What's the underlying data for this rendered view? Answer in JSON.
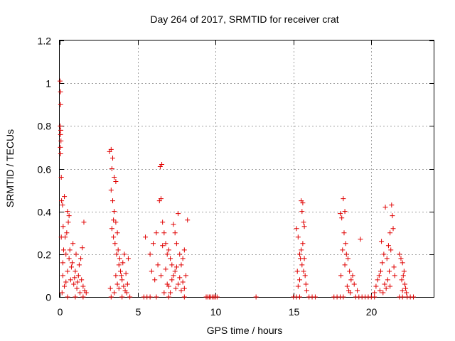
{
  "chart_data": {
    "type": "scatter",
    "title": "Day 264 of 2017, SRMTID for receiver crat",
    "xlabel": "GPS time / hours",
    "ylabel": "SRMTID / TECUs",
    "xlim": [
      0,
      24
    ],
    "ylim": [
      0,
      1.2
    ],
    "xticks": [
      0,
      5,
      10,
      15,
      20
    ],
    "xtick_labels": [
      "0",
      "5",
      "10",
      "15",
      "20"
    ],
    "yticks": [
      0,
      0.2,
      0.4,
      0.6,
      0.8,
      1.0,
      1.2
    ],
    "ytick_labels": [
      "0",
      "0.2",
      "0.4",
      "0.6",
      "0.8",
      "1",
      "1.2"
    ],
    "grid": true,
    "marker": "+",
    "color": "#e00000",
    "series": [
      {
        "name": "SRMTID",
        "points": [
          [
            0.02,
            1.01
          ],
          [
            0.05,
            0.96
          ],
          [
            0.06,
            0.9
          ],
          [
            0.03,
            0.8
          ],
          [
            0.07,
            0.78
          ],
          [
            0.05,
            0.76
          ],
          [
            0.08,
            0.73
          ],
          [
            0.04,
            0.7
          ],
          [
            0.06,
            0.67
          ],
          [
            0.1,
            0.56
          ],
          [
            0.12,
            0.45
          ],
          [
            0.18,
            0.43
          ],
          [
            0.3,
            0.47
          ],
          [
            0.5,
            0.4
          ],
          [
            0.6,
            0.38
          ],
          [
            0.55,
            0.35
          ],
          [
            0.45,
            0.3
          ],
          [
            0.35,
            0.28
          ],
          [
            0.25,
            0.22
          ],
          [
            0.4,
            0.2
          ],
          [
            0.6,
            0.18
          ],
          [
            0.8,
            0.16
          ],
          [
            1.0,
            0.12
          ],
          [
            1.2,
            0.1
          ],
          [
            1.4,
            0.08
          ],
          [
            1.5,
            0.05
          ],
          [
            1.6,
            0.03
          ],
          [
            1.7,
            0.02
          ],
          [
            0.2,
            0.1
          ],
          [
            0.3,
            0.05
          ],
          [
            0.7,
            0.08
          ],
          [
            0.9,
            0.06
          ],
          [
            1.1,
            0.04
          ],
          [
            1.3,
            0.02
          ],
          [
            0.15,
            0.02
          ],
          [
            0.5,
            0.12
          ],
          [
            0.65,
            0.22
          ],
          [
            0.85,
            0.25
          ],
          [
            1.05,
            0.2
          ],
          [
            1.25,
            0.15
          ],
          [
            1.45,
            0.23
          ],
          [
            1.55,
            0.35
          ],
          [
            1.35,
            0.18
          ],
          [
            0.75,
            0.14
          ],
          [
            0.95,
            0.09
          ],
          [
            1.15,
            0.07
          ],
          [
            0.4,
            0.07
          ],
          [
            0.2,
            0.16
          ],
          [
            0.1,
            0.28
          ],
          [
            0.22,
            0.33
          ],
          [
            3.2,
            0.68
          ],
          [
            3.3,
            0.69
          ],
          [
            3.4,
            0.65
          ],
          [
            3.35,
            0.6
          ],
          [
            3.5,
            0.56
          ],
          [
            3.6,
            0.54
          ],
          [
            3.3,
            0.5
          ],
          [
            3.4,
            0.45
          ],
          [
            3.5,
            0.4
          ],
          [
            3.6,
            0.35
          ],
          [
            3.7,
            0.3
          ],
          [
            3.55,
            0.25
          ],
          [
            3.65,
            0.2
          ],
          [
            3.8,
            0.15
          ],
          [
            3.9,
            0.12
          ],
          [
            4.0,
            0.08
          ],
          [
            4.1,
            0.05
          ],
          [
            4.2,
            0.03
          ],
          [
            4.3,
            0.02
          ],
          [
            3.45,
            0.28
          ],
          [
            3.75,
            0.22
          ],
          [
            3.85,
            0.18
          ],
          [
            3.95,
            0.1
          ],
          [
            4.05,
            0.16
          ],
          [
            4.15,
            0.2
          ],
          [
            4.25,
            0.11
          ],
          [
            4.35,
            0.06
          ],
          [
            4.4,
            0.18
          ],
          [
            3.7,
            0.06
          ],
          [
            3.8,
            0.04
          ],
          [
            3.6,
            0.1
          ],
          [
            3.5,
            0.02
          ],
          [
            3.35,
            0.32
          ],
          [
            3.45,
            0.36
          ],
          [
            3.25,
            0.04
          ],
          [
            5.5,
            0.28
          ],
          [
            5.8,
            0.2
          ],
          [
            6.0,
            0.25
          ],
          [
            6.2,
            0.3
          ],
          [
            6.4,
            0.45
          ],
          [
            6.5,
            0.46
          ],
          [
            6.45,
            0.61
          ],
          [
            6.55,
            0.62
          ],
          [
            6.6,
            0.35
          ],
          [
            6.7,
            0.3
          ],
          [
            6.8,
            0.25
          ],
          [
            6.9,
            0.2
          ],
          [
            7.0,
            0.22
          ],
          [
            7.1,
            0.18
          ],
          [
            7.2,
            0.15
          ],
          [
            7.3,
            0.34
          ],
          [
            7.4,
            0.3
          ],
          [
            7.5,
            0.25
          ],
          [
            7.6,
            0.39
          ],
          [
            7.7,
            0.2
          ],
          [
            7.8,
            0.15
          ],
          [
            7.9,
            0.18
          ],
          [
            8.0,
            0.22
          ],
          [
            8.1,
            0.1
          ],
          [
            8.2,
            0.36
          ],
          [
            7.0,
            0.05
          ],
          [
            7.2,
            0.08
          ],
          [
            7.4,
            0.12
          ],
          [
            7.6,
            0.06
          ],
          [
            7.8,
            0.03
          ],
          [
            8.0,
            0.04
          ],
          [
            6.5,
            0.1
          ],
          [
            6.3,
            0.15
          ],
          [
            6.1,
            0.08
          ],
          [
            5.9,
            0.12
          ],
          [
            6.7,
            0.02
          ],
          [
            6.9,
            0.06
          ],
          [
            7.1,
            0.02
          ],
          [
            7.3,
            0.1
          ],
          [
            7.5,
            0.14
          ],
          [
            7.7,
            0.09
          ],
          [
            7.9,
            0.07
          ],
          [
            6.6,
            0.24
          ],
          [
            6.8,
            0.13
          ],
          [
            7.45,
            0.04
          ],
          [
            0.5,
            0.0
          ],
          [
            1.0,
            0.0
          ],
          [
            1.5,
            0.0
          ],
          [
            3.3,
            0.0
          ],
          [
            4.0,
            0.0
          ],
          [
            4.5,
            0.0
          ],
          [
            5.4,
            0.0
          ],
          [
            5.6,
            0.0
          ],
          [
            5.8,
            0.0
          ],
          [
            6.2,
            0.0
          ],
          [
            7.0,
            0.0
          ],
          [
            8.0,
            0.0
          ],
          [
            9.4,
            0.0
          ],
          [
            9.5,
            0.0
          ],
          [
            9.6,
            0.0
          ],
          [
            9.7,
            0.0
          ],
          [
            9.8,
            0.0
          ],
          [
            9.9,
            0.0
          ],
          [
            10.0,
            0.0
          ],
          [
            10.1,
            0.0
          ],
          [
            12.6,
            0.0
          ],
          [
            15.0,
            0.0
          ],
          [
            15.2,
            0.0
          ],
          [
            15.4,
            0.0
          ],
          [
            16.0,
            0.0
          ],
          [
            16.2,
            0.0
          ],
          [
            16.4,
            0.0
          ],
          [
            17.6,
            0.0
          ],
          [
            17.8,
            0.0
          ],
          [
            18.0,
            0.0
          ],
          [
            18.2,
            0.0
          ],
          [
            19.0,
            0.0
          ],
          [
            19.2,
            0.0
          ],
          [
            19.4,
            0.0
          ],
          [
            19.6,
            0.0
          ],
          [
            19.8,
            0.0
          ],
          [
            20.0,
            0.0
          ],
          [
            20.2,
            0.0
          ],
          [
            21.8,
            0.0
          ],
          [
            22.0,
            0.0
          ],
          [
            22.3,
            0.0
          ],
          [
            22.5,
            0.0
          ],
          [
            22.7,
            0.0
          ],
          [
            15.2,
            0.32
          ],
          [
            15.3,
            0.28
          ],
          [
            15.4,
            0.2
          ],
          [
            15.5,
            0.45
          ],
          [
            15.6,
            0.44
          ],
          [
            15.55,
            0.4
          ],
          [
            15.65,
            0.35
          ],
          [
            15.7,
            0.33
          ],
          [
            15.6,
            0.25
          ],
          [
            15.5,
            0.22
          ],
          [
            15.45,
            0.18
          ],
          [
            15.55,
            0.15
          ],
          [
            15.65,
            0.12
          ],
          [
            15.7,
            0.18
          ],
          [
            15.75,
            0.1
          ],
          [
            15.8,
            0.06
          ],
          [
            15.85,
            0.03
          ],
          [
            15.4,
            0.08
          ],
          [
            15.3,
            0.05
          ],
          [
            15.25,
            0.12
          ],
          [
            18.0,
            0.39
          ],
          [
            18.1,
            0.37
          ],
          [
            18.2,
            0.46
          ],
          [
            18.3,
            0.4
          ],
          [
            18.25,
            0.3
          ],
          [
            18.35,
            0.25
          ],
          [
            18.15,
            0.22
          ],
          [
            18.4,
            0.2
          ],
          [
            18.5,
            0.18
          ],
          [
            18.3,
            0.15
          ],
          [
            18.6,
            0.12
          ],
          [
            18.7,
            0.08
          ],
          [
            18.45,
            0.05
          ],
          [
            18.55,
            0.03
          ],
          [
            18.8,
            0.1
          ],
          [
            18.9,
            0.06
          ],
          [
            19.1,
            0.03
          ],
          [
            19.3,
            0.27
          ],
          [
            18.05,
            0.1
          ],
          [
            18.65,
            0.02
          ],
          [
            20.2,
            0.02
          ],
          [
            20.3,
            0.05
          ],
          [
            20.4,
            0.08
          ],
          [
            20.5,
            0.1
          ],
          [
            20.6,
            0.12
          ],
          [
            20.7,
            0.16
          ],
          [
            20.8,
            0.2
          ],
          [
            20.9,
            0.42
          ],
          [
            21.0,
            0.18
          ],
          [
            21.1,
            0.24
          ],
          [
            21.2,
            0.3
          ],
          [
            21.3,
            0.43
          ],
          [
            21.4,
            0.32
          ],
          [
            21.25,
            0.22
          ],
          [
            21.15,
            0.12
          ],
          [
            21.05,
            0.08
          ],
          [
            20.95,
            0.04
          ],
          [
            20.85,
            0.06
          ],
          [
            21.35,
            0.38
          ],
          [
            21.45,
            0.14
          ],
          [
            21.8,
            0.2
          ],
          [
            21.9,
            0.18
          ],
          [
            22.0,
            0.16
          ],
          [
            22.05,
            0.1
          ],
          [
            22.1,
            0.12
          ],
          [
            22.15,
            0.06
          ],
          [
            22.2,
            0.04
          ],
          [
            22.25,
            0.02
          ],
          [
            21.95,
            0.08
          ],
          [
            22.0,
            0.03
          ],
          [
            20.55,
            0.03
          ],
          [
            20.75,
            0.02
          ],
          [
            21.2,
            0.05
          ],
          [
            21.5,
            0.1
          ],
          [
            20.65,
            0.26
          ]
        ]
      }
    ]
  }
}
